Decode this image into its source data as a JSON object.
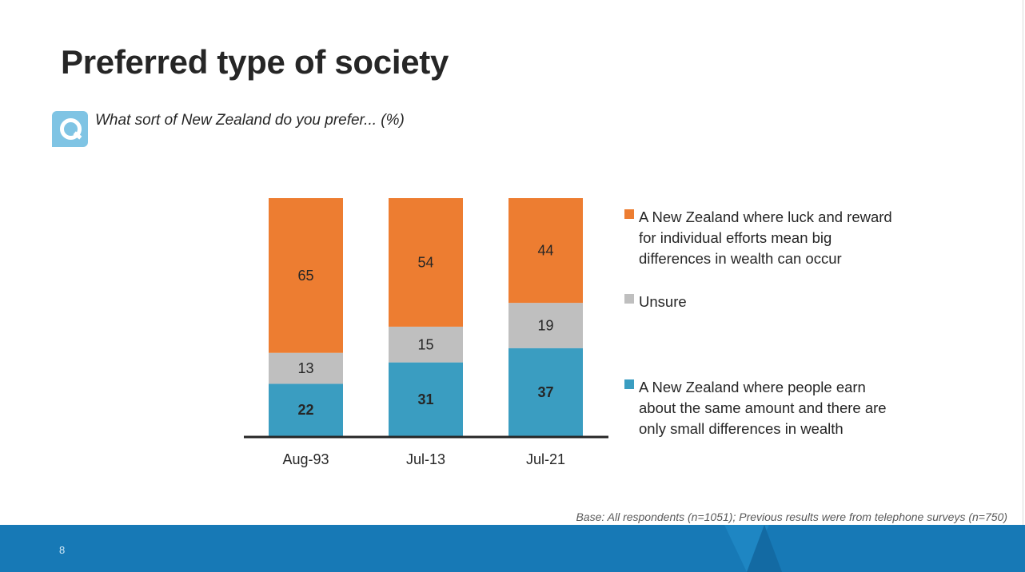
{
  "slide": {
    "title": "Preferred type of society",
    "question": "What sort of New Zealand do you prefer... (%)",
    "base_note": "Base: All respondents (n=1051); Previous results were from telephone surveys (n=750)",
    "page_number": "8"
  },
  "legend": [
    {
      "label": "A New Zealand where luck and reward for individual efforts mean big differences in wealth can occur",
      "color": "#ed7d31"
    },
    {
      "label": "Unsure",
      "color": "#bfbfbf"
    },
    {
      "label": "A New Zealand where people earn about the same amount and there are only small differences in wealth",
      "color": "#3a9dc1"
    }
  ],
  "chart_data": {
    "type": "bar",
    "stacked": true,
    "categories": [
      "Aug-93",
      "Jul-13",
      "Jul-21"
    ],
    "series": [
      {
        "name": "A New Zealand where people earn about the same amount and there are only small differences in wealth",
        "values": [
          22,
          31,
          37
        ],
        "color": "#3a9dc1"
      },
      {
        "name": "Unsure",
        "values": [
          13,
          15,
          19
        ],
        "color": "#bfbfbf"
      },
      {
        "name": "A New Zealand where luck and reward for individual efforts mean big differences in wealth can occur",
        "values": [
          65,
          54,
          44
        ],
        "color": "#ed7d31"
      }
    ],
    "ylim": [
      0,
      100
    ],
    "grid": false,
    "legend_position": "right"
  }
}
